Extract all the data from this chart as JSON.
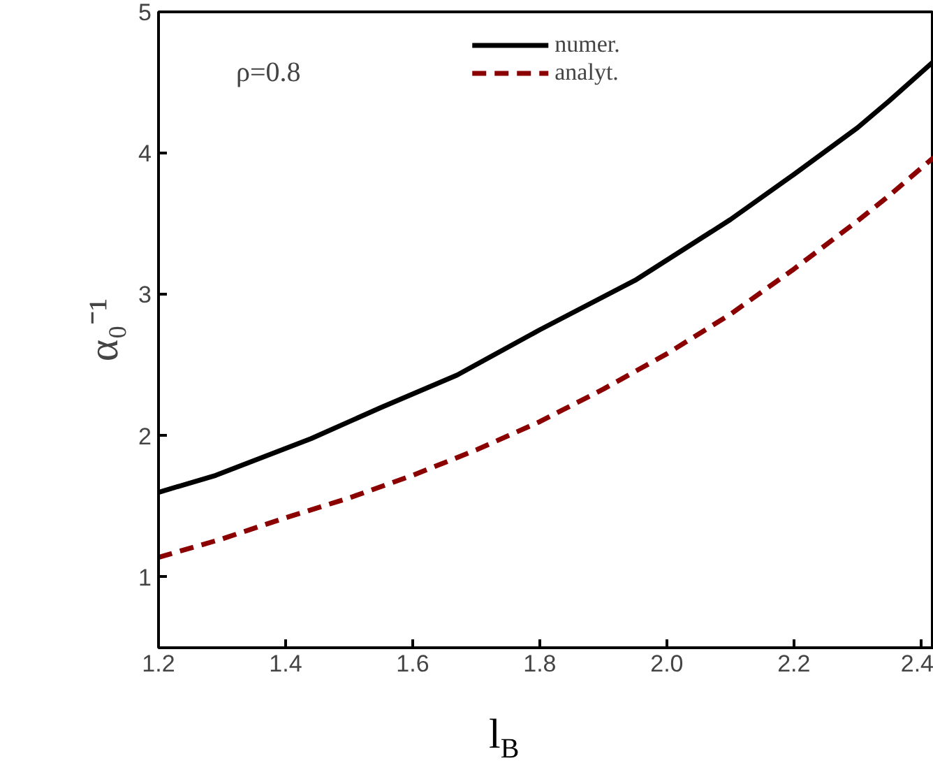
{
  "chart_data": {
    "type": "line",
    "xlabel": "l$_{B}$",
    "ylabel": "α₀⁻¹",
    "annotations": [
      "ρ=0.8"
    ],
    "xlim": [
      1.2,
      2.42
    ],
    "ylim": [
      0.5,
      5
    ],
    "xticks": [
      1.2,
      1.4,
      1.6,
      1.8,
      {
        "value": 2,
        "label": "2.0"
      },
      2.2,
      2.4
    ],
    "yticks": [
      1,
      2,
      3,
      4,
      5
    ],
    "grid": false,
    "legend": "top",
    "series": [
      {
        "name": "numer.",
        "color": "#000000",
        "line_style": "solid",
        "x": [
          1.2,
          1.29,
          1.44,
          1.55,
          1.67,
          1.8,
          1.95,
          2.1,
          2.2,
          2.3,
          2.35,
          2.42
        ],
        "values": [
          1.6,
          1.72,
          1.98,
          2.2,
          2.43,
          2.75,
          3.1,
          3.53,
          3.85,
          4.18,
          4.37,
          4.65
        ]
      },
      {
        "name": "analyt.",
        "color": "#8b0000",
        "line_style": "dashed",
        "x": [
          1.2,
          1.3,
          1.4,
          1.5,
          1.6,
          1.7,
          1.8,
          1.9,
          2.0,
          2.1,
          2.2,
          2.3,
          2.35,
          2.42
        ],
        "values": [
          1.14,
          1.27,
          1.42,
          1.56,
          1.72,
          1.9,
          2.1,
          2.33,
          2.58,
          2.86,
          3.18,
          3.52,
          3.7,
          3.97
        ]
      }
    ]
  }
}
